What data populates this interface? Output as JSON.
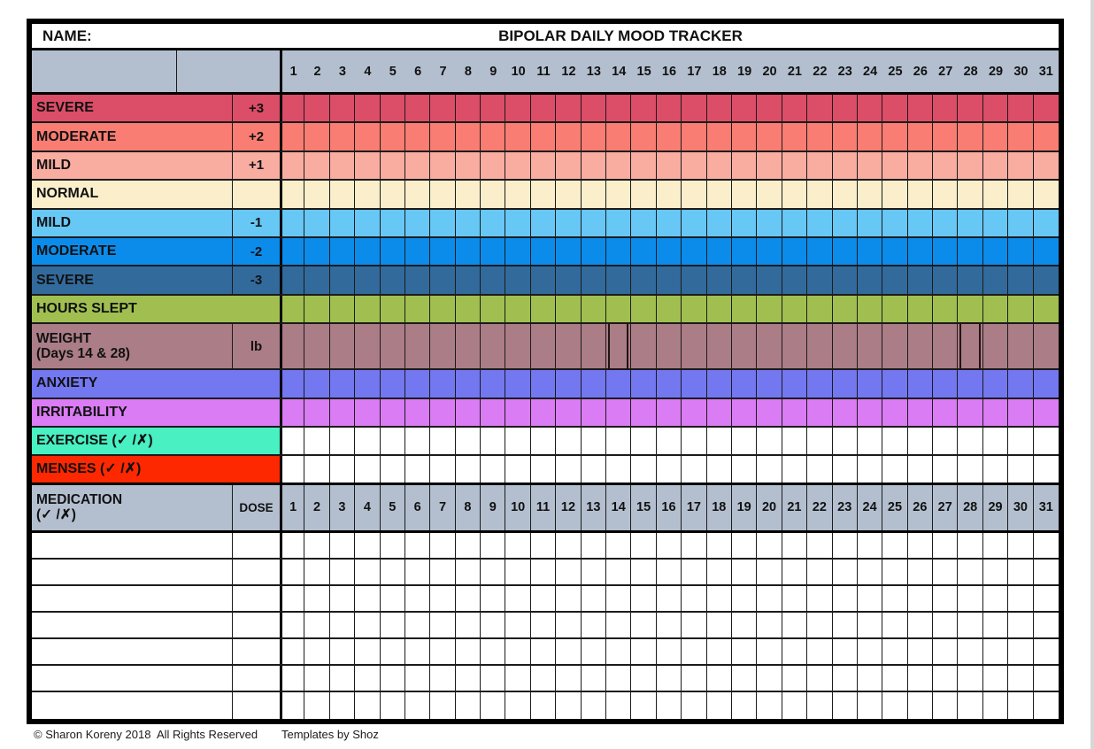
{
  "header": {
    "name_label": "NAME:",
    "title": "BIPOLAR DAILY MOOD TRACKER"
  },
  "days": [
    1,
    2,
    3,
    4,
    5,
    6,
    7,
    8,
    9,
    10,
    11,
    12,
    13,
    14,
    15,
    16,
    17,
    18,
    19,
    20,
    21,
    22,
    23,
    24,
    25,
    26,
    27,
    28,
    29,
    30,
    31
  ],
  "rows": [
    {
      "id": "severe-plus3",
      "label": "SEVERE",
      "value": "+3",
      "color": "#dc4d68",
      "cells": "color"
    },
    {
      "id": "moderate-plus2",
      "label": "MODERATE",
      "value": "+2",
      "color": "#f97d72",
      "cells": "color"
    },
    {
      "id": "mild-plus1",
      "label": "MILD",
      "value": "+1",
      "color": "#f9ada1",
      "cells": "color"
    },
    {
      "id": "normal",
      "label": "NORMAL",
      "value": "",
      "color": "#faeecb",
      "cells": "color"
    },
    {
      "id": "mild-minus1",
      "label": "MILD",
      "value": "-1",
      "color": "#67c7f5",
      "cells": "color"
    },
    {
      "id": "moderate-minus2",
      "label": "MODERATE",
      "value": "-2",
      "color": "#0b8ceb",
      "cells": "color"
    },
    {
      "id": "severe-minus3",
      "label": "SEVERE",
      "value": "-3",
      "color": "#326a9c",
      "cells": "color"
    },
    {
      "id": "hours-slept",
      "label": "HOURS SLEPT",
      "color": "#a0bf50",
      "merged": true,
      "cells": "color"
    },
    {
      "id": "weight",
      "label": "WEIGHT",
      "label2": "(Days 14 & 28)",
      "value": "lb",
      "color": "#ab7d87",
      "cells": "color",
      "tall": true,
      "boxed_days": [
        14,
        28
      ]
    },
    {
      "id": "anxiety",
      "label": "ANXIETY",
      "color": "#7377f0",
      "merged": true,
      "cells": "color"
    },
    {
      "id": "irritability",
      "label": "IRRITABILITY",
      "color": "#da7cf4",
      "merged": true,
      "cells": "color"
    },
    {
      "id": "exercise",
      "label": "EXERCISE (✓ /✗)",
      "color": "#48f0c2",
      "merged": true,
      "cells": "white"
    },
    {
      "id": "menses",
      "label": "MENSES (✓ /✗)",
      "color": "#fe2800",
      "merged": true,
      "cells": "white",
      "thick_bottom": true
    }
  ],
  "medication": {
    "label": "MEDICATION",
    "label2": "(✓ /✗)",
    "dose_label": "DOSE",
    "empty_rows": 7
  },
  "footer": {
    "copyright": "© Sharon Koreny 2018  All Rights Reserved",
    "credit": "Templates by Shoz"
  },
  "colors": {
    "header_gray": "#b3bfcf",
    "grid_line": "#1b1b1b",
    "frame": "#000000"
  }
}
